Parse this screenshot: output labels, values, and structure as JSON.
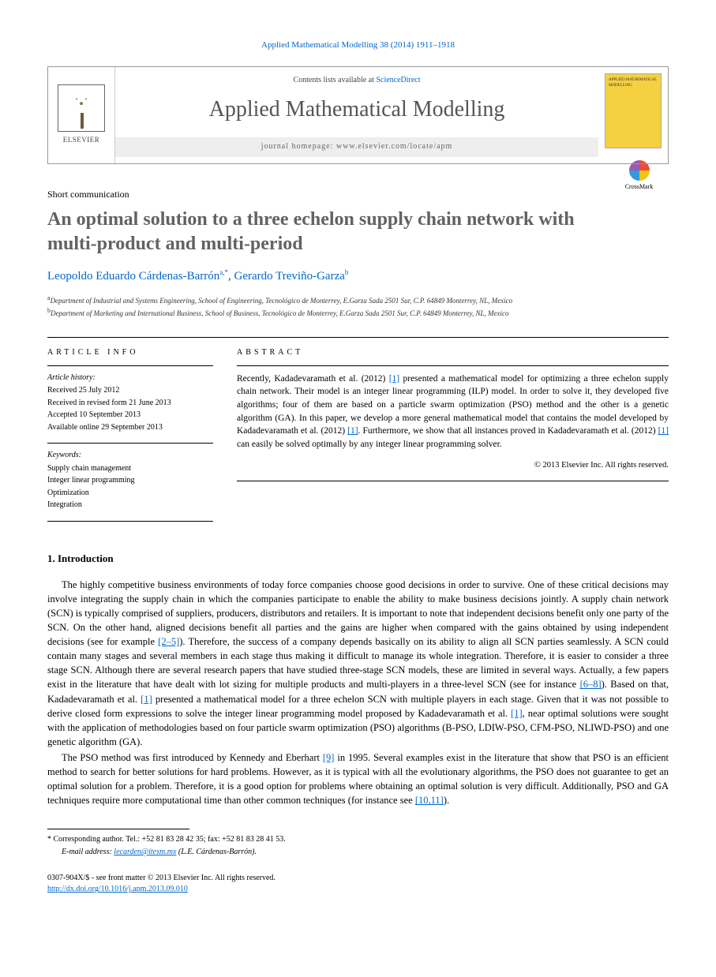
{
  "citation": "Applied Mathematical Modelling 38 (2014) 1911–1918",
  "masthead": {
    "contents_prefix": "Contents lists available at ",
    "contents_link": "ScienceDirect",
    "journal": "Applied Mathematical Modelling",
    "homepage_prefix": "journal homepage: ",
    "homepage_url": "www.elsevier.com/locate/apm",
    "publisher": "ELSEVIER",
    "cover_text": "APPLIED MATHEMATICAL MODELLING"
  },
  "article_type": "Short communication",
  "title": "An optimal solution to a three echelon supply chain network with multi-product and multi-period",
  "crossmark_label": "CrossMark",
  "authors": [
    {
      "name": "Leopoldo Eduardo Cárdenas-Barrón",
      "marks": "a,*"
    },
    {
      "name": "Gerardo Treviño-Garza",
      "marks": "b"
    }
  ],
  "affiliations": [
    {
      "mark": "a",
      "text": "Department of Industrial and Systems Engineering, School of Engineering, Tecnológico de Monterrey, E.Garza Sada 2501 Sur, C.P. 64849 Monterrey, NL, Mexico"
    },
    {
      "mark": "b",
      "text": "Department of Marketing and International Business, School of Business, Tecnológico de Monterrey, E.Garza Sada 2501 Sur, C.P. 64849 Monterrey, NL, Mexico"
    }
  ],
  "article_info": {
    "heading": "ARTICLE INFO",
    "history_title": "Article history:",
    "history": [
      "Received 25 July 2012",
      "Received in revised form 21 June 2013",
      "Accepted 10 September 2013",
      "Available online 29 September 2013"
    ],
    "keywords_title": "Keywords:",
    "keywords": [
      "Supply chain management",
      "Integer linear programming",
      "Optimization",
      "Integration"
    ]
  },
  "abstract": {
    "heading": "ABSTRACT",
    "text_parts": [
      "Recently, Kadadevaramath et al. (2012) ",
      "[1]",
      " presented a mathematical model for optimizing a three echelon supply chain network. Their model is an integer linear programming (ILP) model. In order to solve it, they developed five algorithms; four of them are based on a particle swarm optimization (PSO) method and the other is a genetic algorithm (GA). In this paper, we develop a more general mathematical model that contains the model developed by Kadadevaramath et al. (2012) ",
      "[1]",
      ". Furthermore, we show that all instances proved in Kadadevaramath et al. (2012) ",
      "[1]",
      " can easily be solved optimally by any integer linear programming solver."
    ],
    "copyright": "© 2013 Elsevier Inc. All rights reserved."
  },
  "section1": {
    "heading": "1. Introduction",
    "para1_parts": [
      "The highly competitive business environments of today force companies choose good decisions in order to survive. One of these critical decisions may involve integrating the supply chain in which the companies participate to enable the ability to make business decisions jointly. A supply chain network (SCN) is typically comprised of suppliers, producers, distributors and retailers. It is important to note that independent decisions benefit only one party of the SCN. On the other hand, aligned decisions benefit all parties and the gains are higher when compared with the gains obtained by using independent decisions (see for example ",
      "[2–5]",
      "). Therefore, the success of a company depends basically on its ability to align all SCN parties seamlessly. A SCN could contain many stages and several members in each stage thus making it difficult to manage its whole integration. Therefore, it is easier to consider a three stage SCN. Although there are several research papers that have studied three-stage SCN models, these are limited in several ways. Actually, a few papers exist in the literature that have dealt with lot sizing for multiple products and multi-players in a three-level SCN (see for instance ",
      "[6–8]",
      "). Based on that, Kadadevaramath et al. ",
      "[1]",
      " presented a mathematical model for a three echelon SCN with multiple players in each stage. Given that it was not possible to derive closed form expressions to solve the integer linear programming model proposed by Kadadevaramath et al. ",
      "[1]",
      ", near optimal solutions were sought with the application of methodologies based on four particle swarm optimization (PSO) algorithms (B-PSO, LDIW-PSO, CFM-PSO, NLIWD-PSO) and one genetic algorithm (GA)."
    ],
    "para2_parts": [
      "The PSO method was first introduced by Kennedy and Eberhart ",
      "[9]",
      " in 1995. Several examples exist in the literature that show that PSO is an efficient method to search for better solutions for hard problems. However, as it is typical with all the evolutionary algorithms, the PSO does not guarantee to get an optimal solution for a problem. Therefore, it is a good option for problems where obtaining an optimal solution is very difficult. Additionally, PSO and GA techniques require more computational time than other common techniques (for instance see ",
      "[10,11]",
      ")."
    ]
  },
  "footer": {
    "corresponding": "* Corresponding author. Tel.: +52 81 83 28 42 35; fax: +52 81 83 28 41 53.",
    "email_label": "E-mail address: ",
    "email": "lecarden@itesm.mx",
    "email_author": " (L.E. Cárdenas-Barrón).",
    "issn_line": "0307-904X/$ - see front matter © 2013 Elsevier Inc. All rights reserved.",
    "doi": "http://dx.doi.org/10.1016/j.apm.2013.09.010"
  }
}
